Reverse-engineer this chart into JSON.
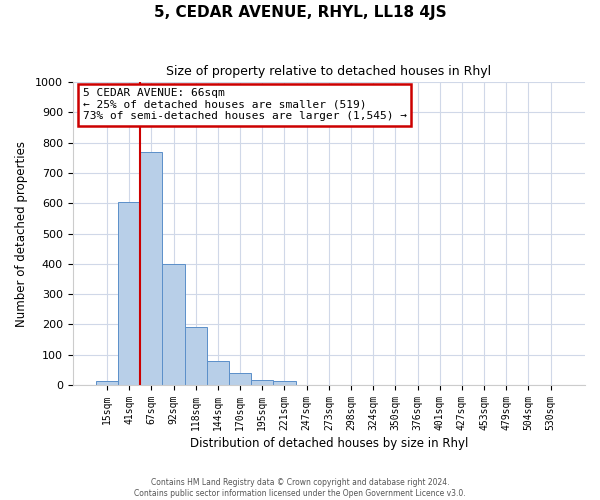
{
  "title": "5, CEDAR AVENUE, RHYL, LL18 4JS",
  "subtitle": "Size of property relative to detached houses in Rhyl",
  "xlabel": "Distribution of detached houses by size in Rhyl",
  "ylabel": "Number of detached properties",
  "bar_labels": [
    "15sqm",
    "41sqm",
    "67sqm",
    "92sqm",
    "118sqm",
    "144sqm",
    "170sqm",
    "195sqm",
    "221sqm",
    "247sqm",
    "273sqm",
    "298sqm",
    "324sqm",
    "350sqm",
    "376sqm",
    "401sqm",
    "427sqm",
    "453sqm",
    "479sqm",
    "504sqm",
    "530sqm"
  ],
  "bar_values": [
    15,
    605,
    770,
    400,
    190,
    78,
    40,
    18,
    12,
    0,
    0,
    0,
    0,
    0,
    0,
    0,
    0,
    0,
    0,
    0,
    0
  ],
  "bar_color": "#b8cfe8",
  "bar_edge_color": "#5b8fc9",
  "vline_x_idx": 2,
  "vline_color": "#cc0000",
  "ylim": [
    0,
    1000
  ],
  "yticks": [
    0,
    100,
    200,
    300,
    400,
    500,
    600,
    700,
    800,
    900,
    1000
  ],
  "annotation_title": "5 CEDAR AVENUE: 66sqm",
  "annotation_line1": "← 25% of detached houses are smaller (519)",
  "annotation_line2": "73% of semi-detached houses are larger (1,545) →",
  "annotation_box_color": "#cc0000",
  "footer1": "Contains HM Land Registry data © Crown copyright and database right 2024.",
  "footer2": "Contains public sector information licensed under the Open Government Licence v3.0.",
  "bg_color": "#ffffff",
  "grid_color": "#d0d8e8"
}
